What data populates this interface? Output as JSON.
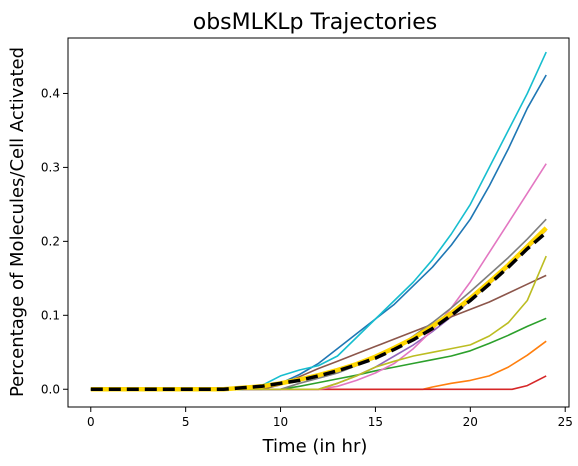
{
  "chart_data": {
    "type": "line",
    "title": "obsMLKLp Trajectories",
    "xlabel": "Time (in hr)",
    "ylabel": "Percentage of Molecules/Cell Activated",
    "xlim": [
      -1.2,
      25.2
    ],
    "ylim": [
      -0.024,
      0.475
    ],
    "xticks": [
      0,
      5,
      10,
      15,
      20,
      25
    ],
    "yticks": [
      0.0,
      0.1,
      0.2,
      0.3,
      0.4
    ],
    "xtick_labels": [
      "0",
      "5",
      "10",
      "15",
      "20",
      "25"
    ],
    "ytick_labels": [
      "0.0",
      "0.1",
      "0.2",
      "0.3",
      "0.4"
    ],
    "grid": false,
    "legend": "none",
    "series": [
      {
        "color": "#1f77b4",
        "x": [
          0,
          8,
          9,
          10,
          11,
          12,
          13,
          14,
          15,
          16,
          17,
          18,
          19,
          20,
          21,
          22,
          23,
          24
        ],
        "y": [
          0,
          0,
          0.002,
          0.008,
          0.02,
          0.035,
          0.055,
          0.075,
          0.095,
          0.115,
          0.14,
          0.165,
          0.195,
          0.23,
          0.275,
          0.325,
          0.38,
          0.425
        ]
      },
      {
        "color": "#ff7f0e",
        "x": [
          0,
          17.5,
          18,
          19,
          20,
          21,
          22,
          23,
          24
        ],
        "y": [
          0,
          0,
          0.003,
          0.008,
          0.012,
          0.018,
          0.03,
          0.046,
          0.065
        ]
      },
      {
        "color": "#2ca02c",
        "x": [
          0,
          10,
          11,
          12,
          13,
          14,
          15,
          16,
          17,
          18,
          19,
          20,
          21,
          22,
          23,
          24
        ],
        "y": [
          0,
          0,
          0.004,
          0.009,
          0.014,
          0.019,
          0.025,
          0.03,
          0.035,
          0.04,
          0.045,
          0.052,
          0.062,
          0.073,
          0.085,
          0.096
        ]
      },
      {
        "color": "#d62728",
        "x": [
          0,
          22.2,
          23,
          24
        ],
        "y": [
          0,
          0,
          0.005,
          0.018
        ]
      },
      {
        "color": "#9467bd",
        "x": [
          0,
          12,
          13,
          14,
          15,
          16,
          17,
          18,
          19,
          20,
          21,
          22,
          23,
          24
        ],
        "y": [
          0,
          0,
          0.008,
          0.018,
          0.03,
          0.045,
          0.06,
          0.078,
          0.098,
          0.12,
          0.142,
          0.165,
          0.19,
          0.215
        ]
      },
      {
        "color": "#8c564b",
        "x": [
          0,
          9,
          10,
          11,
          12,
          13,
          14,
          15,
          16,
          17,
          18,
          19,
          20,
          21,
          22,
          23,
          24
        ],
        "y": [
          0,
          0,
          0.006,
          0.017,
          0.028,
          0.038,
          0.048,
          0.058,
          0.068,
          0.078,
          0.088,
          0.098,
          0.108,
          0.118,
          0.13,
          0.142,
          0.154
        ]
      },
      {
        "color": "#e377c2",
        "x": [
          0,
          12,
          13,
          14,
          15,
          16,
          17,
          18,
          19,
          20,
          21,
          22,
          23,
          24
        ],
        "y": [
          0,
          0,
          0.004,
          0.012,
          0.022,
          0.035,
          0.055,
          0.08,
          0.11,
          0.145,
          0.185,
          0.225,
          0.265,
          0.305
        ]
      },
      {
        "color": "#7f7f7f",
        "x": [
          0,
          10,
          11,
          12,
          13,
          14,
          15,
          16,
          17,
          18,
          19,
          20,
          21,
          22,
          23,
          24
        ],
        "y": [
          0,
          0,
          0.008,
          0.015,
          0.022,
          0.032,
          0.042,
          0.055,
          0.072,
          0.09,
          0.11,
          0.132,
          0.155,
          0.178,
          0.203,
          0.23
        ]
      },
      {
        "color": "#bcbd22",
        "x": [
          0,
          12,
          13,
          14,
          15,
          16,
          17,
          18,
          19,
          20,
          21,
          22,
          23,
          24
        ],
        "y": [
          0,
          0,
          0.008,
          0.018,
          0.03,
          0.038,
          0.045,
          0.05,
          0.055,
          0.06,
          0.072,
          0.09,
          0.12,
          0.18
        ]
      },
      {
        "color": "#17becf",
        "x": [
          0,
          8,
          9,
          10,
          11,
          12,
          13,
          14,
          15,
          16,
          17,
          18,
          19,
          20,
          21,
          22,
          23,
          24
        ],
        "y": [
          0,
          0,
          0.005,
          0.018,
          0.026,
          0.032,
          0.045,
          0.07,
          0.095,
          0.12,
          0.145,
          0.175,
          0.21,
          0.25,
          0.3,
          0.35,
          0.4,
          0.456
        ]
      },
      {
        "color": "#ffd700",
        "x": [
          0,
          7,
          8,
          9,
          10,
          11,
          12,
          13,
          14,
          15,
          16,
          17,
          18,
          19,
          20,
          21,
          22,
          23,
          24
        ],
        "y": [
          0,
          0,
          0.002,
          0.004,
          0.008,
          0.013,
          0.019,
          0.026,
          0.034,
          0.044,
          0.056,
          0.069,
          0.085,
          0.103,
          0.123,
          0.145,
          0.168,
          0.193,
          0.218
        ]
      },
      {
        "color": "#000000",
        "dashed": true,
        "x": [
          0,
          7,
          8,
          9,
          10,
          11,
          12,
          13,
          14,
          15,
          16,
          17,
          18,
          19,
          20,
          21,
          22,
          23,
          24
        ],
        "y": [
          0,
          0,
          0.002,
          0.004,
          0.008,
          0.012,
          0.018,
          0.025,
          0.033,
          0.042,
          0.054,
          0.067,
          0.082,
          0.1,
          0.12,
          0.142,
          0.165,
          0.19,
          0.212
        ]
      }
    ]
  }
}
